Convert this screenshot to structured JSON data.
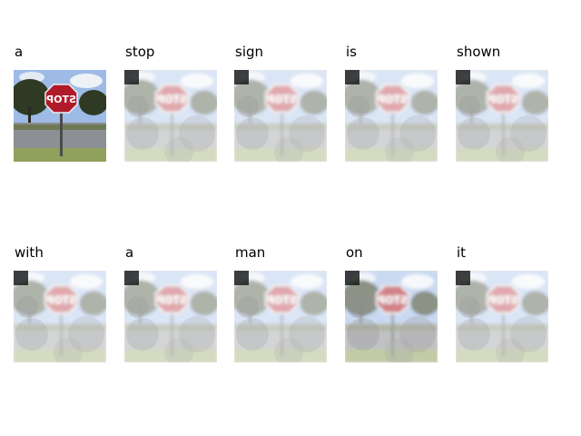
{
  "grid": {
    "rows": [
      {
        "cells": [
          {
            "word": "a",
            "attention": "none"
          },
          {
            "word": "stop",
            "attention": "sign"
          },
          {
            "word": "sign",
            "attention": "sign"
          },
          {
            "word": "is",
            "attention": "sign"
          },
          {
            "word": "shown",
            "attention": "sign"
          }
        ]
      },
      {
        "cells": [
          {
            "word": "with",
            "attention": "scene"
          },
          {
            "word": "a",
            "attention": "sign"
          },
          {
            "word": "man",
            "attention": "sign"
          },
          {
            "word": "on",
            "attention": "sign-dark"
          },
          {
            "word": "it",
            "attention": "scene"
          }
        ]
      }
    ]
  },
  "image": {
    "sign_text": "STOP",
    "colors": {
      "sky": "#9dbbe6",
      "sign": "#b01a2a",
      "tree": "#2f3a24",
      "road": "#8c8f93",
      "grass": "#8fa15a"
    }
  }
}
